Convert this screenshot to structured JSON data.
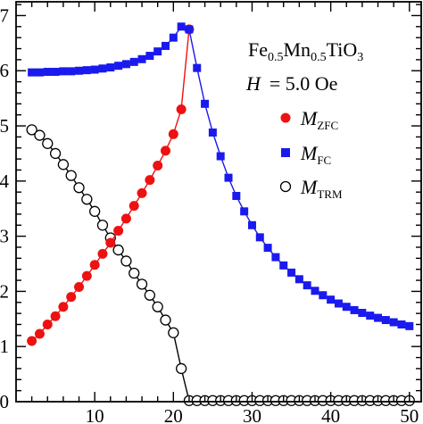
{
  "chart_data": {
    "type": "scatter",
    "title": {
      "formula": [
        {
          "text": "Fe",
          "sub": false
        },
        {
          "text": "0.5",
          "sub": true
        },
        {
          "text": "Mn",
          "sub": false
        },
        {
          "text": "0.5",
          "sub": true
        },
        {
          "text": "TiO",
          "sub": false
        },
        {
          "text": "3",
          "sub": true
        }
      ],
      "field_symbol": "H",
      "field_value": "= 5.0 Oe"
    },
    "xlim": [
      0,
      51.5
    ],
    "ylim": [
      0,
      7.25
    ],
    "x_ticks": [
      10,
      20,
      30,
      40,
      50
    ],
    "y_ticks": [
      0,
      1,
      2,
      3,
      4,
      5,
      6,
      7
    ],
    "legend_position": "right",
    "series": [
      {
        "name_main": "M",
        "name_sub": "ZFC",
        "marker": "circle-filled",
        "color": "#ee1111",
        "x": [
          2,
          3,
          4,
          5,
          6,
          7,
          8,
          9,
          10,
          11,
          12,
          13,
          14,
          15,
          16,
          17,
          18,
          19,
          20,
          21,
          22
        ],
        "y": [
          1.1,
          1.23,
          1.4,
          1.55,
          1.72,
          1.9,
          2.08,
          2.28,
          2.48,
          2.68,
          2.88,
          3.1,
          3.32,
          3.55,
          3.78,
          4.02,
          4.28,
          4.55,
          4.85,
          5.3,
          6.75
        ]
      },
      {
        "name_main": "M",
        "name_sub": "FC",
        "marker": "square-filled",
        "color": "#1a1aee",
        "x": [
          2,
          3,
          4,
          5,
          6,
          7,
          8,
          9,
          10,
          11,
          12,
          13,
          14,
          15,
          16,
          17,
          18,
          19,
          20,
          21,
          22,
          23,
          24,
          25,
          26,
          27,
          28,
          29,
          30,
          31,
          32,
          33,
          34,
          35,
          36,
          37,
          38,
          39,
          40,
          41,
          42,
          43,
          44,
          45,
          46,
          47,
          48,
          49,
          50
        ],
        "y": [
          5.97,
          5.97,
          5.98,
          5.98,
          5.99,
          5.99,
          6.0,
          6.01,
          6.02,
          6.04,
          6.06,
          6.09,
          6.12,
          6.16,
          6.21,
          6.27,
          6.35,
          6.45,
          6.6,
          6.8,
          6.75,
          6.05,
          5.4,
          4.88,
          4.45,
          4.06,
          3.73,
          3.45,
          3.2,
          2.98,
          2.79,
          2.62,
          2.47,
          2.34,
          2.22,
          2.11,
          2.01,
          1.93,
          1.85,
          1.78,
          1.72,
          1.66,
          1.61,
          1.56,
          1.52,
          1.48,
          1.44,
          1.4,
          1.37
        ]
      },
      {
        "name_main": "M",
        "name_sub": "TRM",
        "marker": "circle-open",
        "color": "#000000",
        "x": [
          2,
          3,
          4,
          5,
          6,
          7,
          8,
          9,
          10,
          11,
          12,
          13,
          14,
          15,
          16,
          17,
          18,
          19,
          20,
          21,
          22,
          23,
          24,
          25,
          26,
          27,
          28,
          29,
          30,
          31,
          32,
          33,
          34,
          35,
          36,
          37,
          38,
          39,
          40,
          41,
          42,
          43,
          44,
          45,
          46,
          47,
          48,
          49,
          50
        ],
        "y": [
          4.93,
          4.83,
          4.68,
          4.5,
          4.3,
          4.1,
          3.88,
          3.67,
          3.45,
          3.2,
          2.97,
          2.75,
          2.55,
          2.33,
          2.13,
          1.93,
          1.72,
          1.48,
          1.25,
          0.6,
          0.02,
          0.02,
          0.02,
          0.02,
          0.02,
          0.02,
          0.02,
          0.02,
          0.02,
          0.02,
          0.02,
          0.02,
          0.02,
          0.02,
          0.02,
          0.02,
          0.02,
          0.02,
          0.02,
          0.02,
          0.02,
          0.02,
          0.02,
          0.02,
          0.02,
          0.02,
          0.02,
          0.02,
          0.02
        ]
      }
    ]
  }
}
